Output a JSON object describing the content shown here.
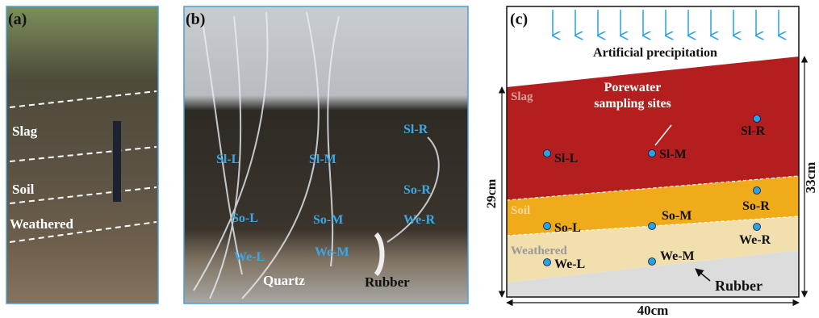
{
  "panels": {
    "a": {
      "label": "(a)",
      "layers": [
        "Slag",
        "Soil",
        "Weathered"
      ]
    },
    "b": {
      "label": "(b)",
      "sites": [
        "Sl-L",
        "Sl-M",
        "Sl-R",
        "So-L",
        "So-M",
        "So-R",
        "We-L",
        "We-M",
        "We-R"
      ],
      "quartz": "Quartz",
      "rubber": "Rubber"
    },
    "c": {
      "label": "(c)",
      "precipitation": "Artificial precipitation",
      "porewater": [
        "Porewater",
        "sampling sites"
      ],
      "layers": [
        "Slag",
        "Soil",
        "Weathered"
      ],
      "rubber": "Rubber",
      "sites": [
        "Sl-L",
        "Sl-M",
        "Sl-R",
        "So-L",
        "So-M",
        "So-R",
        "We-L",
        "We-M",
        "We-R"
      ],
      "dims": [
        "29cm",
        "33cm",
        "40cm"
      ]
    }
  }
}
